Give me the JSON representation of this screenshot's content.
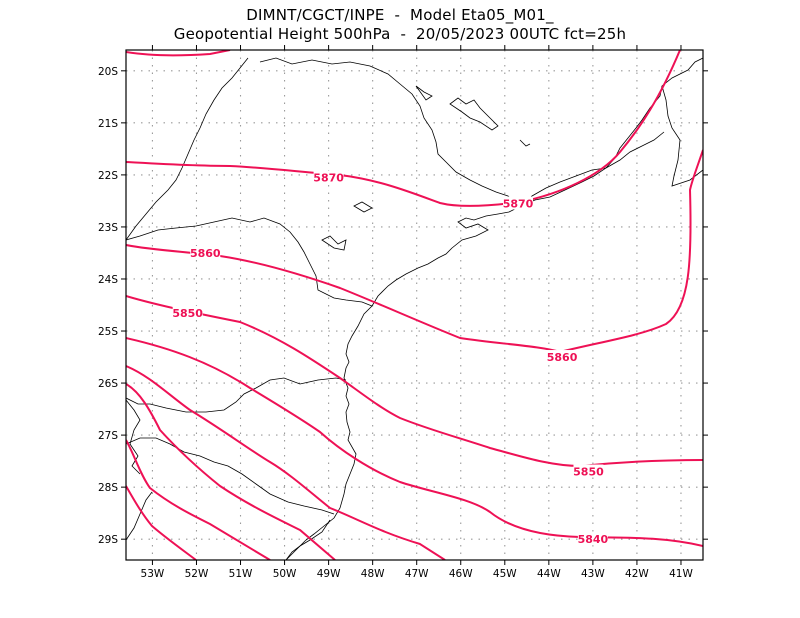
{
  "header": {
    "title_line1": "DIMNT/CGCT/INPE  -  Model Eta05_M01_",
    "title_line2": "Geopotential Height 500hPa  -  20/05/2023 00UTC fct=25h"
  },
  "map": {
    "lon_range": [
      -53.6,
      -40.5
    ],
    "lat_range": [
      -29.4,
      -19.6
    ],
    "x_ticks": [
      "53W",
      "52W",
      "51W",
      "50W",
      "49W",
      "48W",
      "47W",
      "46W",
      "45W",
      "44W",
      "43W",
      "42W",
      "41W"
    ],
    "y_ticks": [
      "20S",
      "21S",
      "22S",
      "23S",
      "24S",
      "25S",
      "26S",
      "27S",
      "28S",
      "29S"
    ],
    "contour_color": "#ee1155",
    "coast_color": "#000000",
    "grid_color": "#9a9a9a",
    "contour_labels": [
      {
        "text": "5870",
        "lon": -49.0,
        "lat": -22.05
      },
      {
        "text": "5870",
        "lon": -44.7,
        "lat": -22.55
      },
      {
        "text": "5860",
        "lon": -51.8,
        "lat": -23.5
      },
      {
        "text": "5860",
        "lon": -43.7,
        "lat": -25.5
      },
      {
        "text": "5850",
        "lon": -52.2,
        "lat": -24.65
      },
      {
        "text": "5850",
        "lon": -43.1,
        "lat": -27.7
      },
      {
        "text": "5840",
        "lon": -43.0,
        "lat": -29.0
      }
    ]
  }
}
